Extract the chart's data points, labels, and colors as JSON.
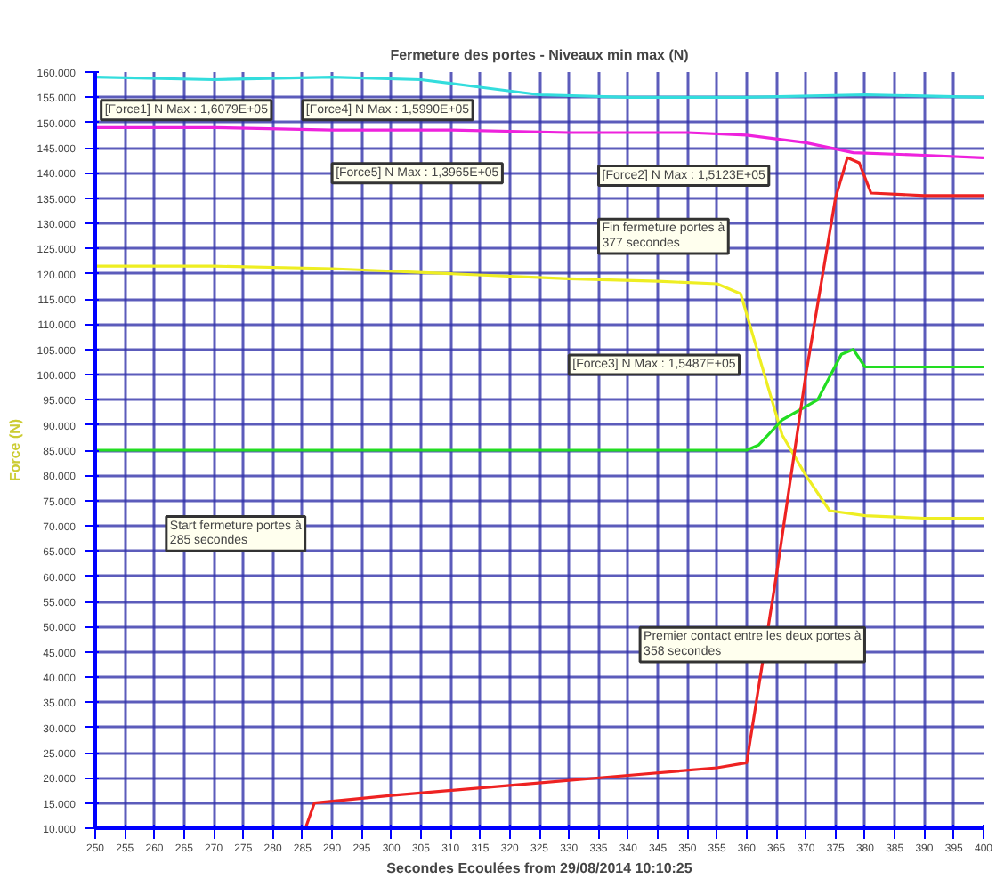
{
  "chart_data": {
    "type": "line",
    "title": "Fermeture des portes - Niveaux min max (N)",
    "xlabel": "Secondes Ecoulées from 29/08/2014 10:10:25",
    "ylabel": "Force (N)",
    "xlim": [
      250,
      400
    ],
    "xticks": [
      250,
      255,
      260,
      265,
      270,
      275,
      280,
      285,
      290,
      295,
      300,
      305,
      310,
      315,
      320,
      325,
      330,
      335,
      340,
      345,
      350,
      355,
      360,
      365,
      370,
      375,
      380,
      385,
      390,
      395,
      400
    ],
    "ylim": [
      10000,
      160000
    ],
    "yticks": [
      {
        "value": 10000,
        "label": "10.000"
      },
      {
        "value": 15000,
        "label": "15.000"
      },
      {
        "value": 20000,
        "label": "20.000"
      },
      {
        "value": 25000,
        "label": "25.000"
      },
      {
        "value": 30000,
        "label": "30.000"
      },
      {
        "value": 35000,
        "label": "35.000"
      },
      {
        "value": 40000,
        "label": "40.000"
      },
      {
        "value": 45000,
        "label": "45.000"
      },
      {
        "value": 50000,
        "label": "50.000"
      },
      {
        "value": 55000,
        "label": "55.000"
      },
      {
        "value": 60000,
        "label": "60.000"
      },
      {
        "value": 65000,
        "label": "65.000"
      },
      {
        "value": 70000,
        "label": "70.000"
      },
      {
        "value": 75000,
        "label": "75.000"
      },
      {
        "value": 80000,
        "label": "80.000"
      },
      {
        "value": 85000,
        "label": "85.000"
      },
      {
        "value": 90000,
        "label": "90.000"
      },
      {
        "value": 95000,
        "label": "95.000"
      },
      {
        "value": 100000,
        "label": "100.000"
      },
      {
        "value": 105000,
        "label": "105.000"
      },
      {
        "value": 110000,
        "label": "110.000"
      },
      {
        "value": 115000,
        "label": "115.000"
      },
      {
        "value": 120000,
        "label": "120.000"
      },
      {
        "value": 125000,
        "label": "125.000"
      },
      {
        "value": 130000,
        "label": "130.000"
      },
      {
        "value": 135000,
        "label": "135.000"
      },
      {
        "value": 140000,
        "label": "140.000"
      },
      {
        "value": 145000,
        "label": "145.000"
      },
      {
        "value": 150000,
        "label": "150.000"
      },
      {
        "value": 155000,
        "label": "155.000"
      },
      {
        "value": 160000,
        "label": "160.000"
      }
    ],
    "grid": true,
    "line_style": "solid",
    "marker": "none",
    "series": [
      {
        "color": "#33dddd",
        "x": [
          250,
          270,
          290,
          305,
          315,
          325,
          340,
          360,
          380,
          400
        ],
        "values": [
          159000,
          158500,
          159000,
          158500,
          157000,
          155500,
          155000,
          155000,
          155500,
          155000
        ]
      },
      {
        "color": "#ee22dd",
        "x": [
          250,
          270,
          290,
          310,
          330,
          350,
          360,
          370,
          378,
          390,
          400
        ],
        "values": [
          149000,
          149000,
          148500,
          148500,
          148000,
          148000,
          147500,
          146000,
          144000,
          143500,
          143000
        ]
      },
      {
        "color": "#eeee22",
        "x": [
          250,
          270,
          290,
          310,
          330,
          345,
          355,
          359,
          362,
          366,
          370,
          374,
          380,
          390,
          400
        ],
        "values": [
          121500,
          121500,
          121000,
          120000,
          119000,
          118500,
          118000,
          116000,
          104000,
          88000,
          80000,
          73000,
          72000,
          71500,
          71500
        ]
      },
      {
        "color": "#22dd22",
        "x": [
          250,
          280,
          310,
          340,
          360,
          362,
          366,
          372,
          376,
          378,
          380,
          390,
          400
        ],
        "values": [
          85000,
          85000,
          85000,
          85000,
          85000,
          86000,
          91000,
          95000,
          104000,
          105000,
          101500,
          101500,
          101500
        ]
      },
      {
        "color": "#ee2222",
        "x": [
          250,
          285.5,
          287,
          300,
          320,
          340,
          355,
          360,
          365,
          370,
          375,
          377,
          379,
          381,
          390,
          400
        ],
        "values": [
          10000,
          10000,
          15000,
          16500,
          18500,
          20500,
          22000,
          23000,
          60000,
          100000,
          135000,
          143000,
          142000,
          136000,
          135500,
          135500
        ]
      }
    ],
    "annotations": [
      "[Force1] N Max : 1,6079E+05",
      "[Force4] N Max : 1,5990E+05",
      "Fin fermeture portes à\n377 secondes",
      "[Force2] N Max : 1,5123E+05",
      "[Force5] N Max : 1,3965E+05",
      "[Force3] N Max : 1,5487E+05",
      "Start fermeture portes à\n285 secondes",
      "Premier contact entre les deux portes à\n358 secondes"
    ]
  }
}
